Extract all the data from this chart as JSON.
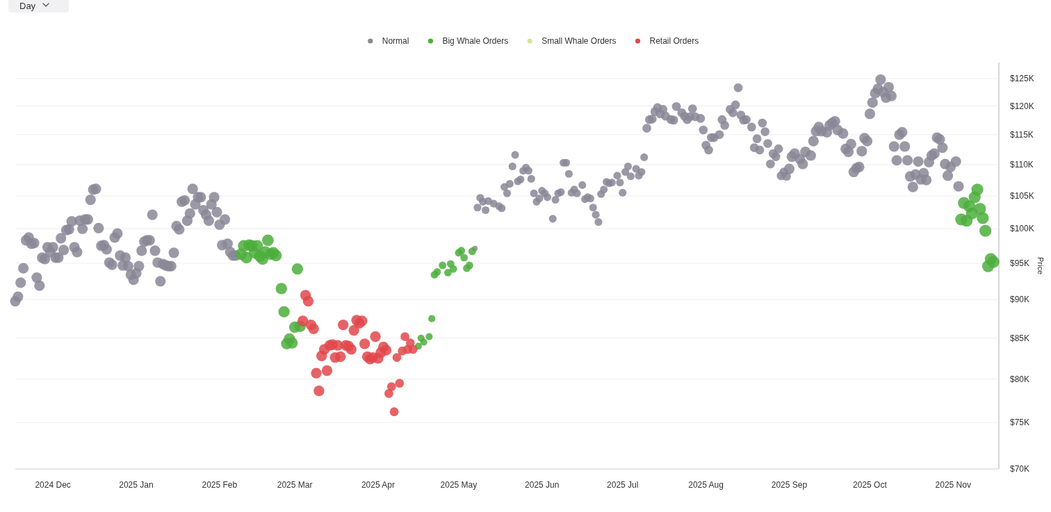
{
  "chart_data": {
    "type": "bubble",
    "ylabel": "Price",
    "annotations": [
      "Day"
    ],
    "legend": "top",
    "grid": "y",
    "log": "y",
    "xlim": [
      "2024-11-17",
      "2025-11-18"
    ],
    "xticks": [
      {
        "value": "2024-12-01",
        "label": "2024 Dec"
      },
      {
        "value": "2025-01-01",
        "label": "2025 Jan"
      },
      {
        "value": "2025-02-01",
        "label": "2025 Feb"
      },
      {
        "value": "2025-03-01",
        "label": "2025 Mar"
      },
      {
        "value": "2025-04-01",
        "label": "2025 Apr"
      },
      {
        "value": "2025-05-01",
        "label": "2025 May"
      },
      {
        "value": "2025-06-01",
        "label": "2025 Jun"
      },
      {
        "value": "2025-07-01",
        "label": "2025 Jul"
      },
      {
        "value": "2025-08-01",
        "label": "2025 Aug"
      },
      {
        "value": "2025-09-01",
        "label": "2025 Sep"
      },
      {
        "value": "2025-10-01",
        "label": "2025 Oct"
      },
      {
        "value": "2025-11-01",
        "label": "2025 Nov"
      }
    ],
    "ylim": [
      70000,
      128000
    ],
    "yticks": [
      {
        "value": 70000,
        "label": "$70K"
      },
      {
        "value": 75000,
        "label": "$75K"
      },
      {
        "value": 80000,
        "label": "$80K"
      },
      {
        "value": 85000,
        "label": "$85K"
      },
      {
        "value": 90000,
        "label": "$90K"
      },
      {
        "value": 95000,
        "label": "$95K"
      },
      {
        "value": 100000,
        "label": "$100K"
      },
      {
        "value": 105000,
        "label": "$105K"
      },
      {
        "value": 110000,
        "label": "$110K"
      },
      {
        "value": 115000,
        "label": "$115K"
      },
      {
        "value": 120000,
        "label": "$120K"
      },
      {
        "value": 125000,
        "label": "$125K"
      }
    ],
    "series": [
      {
        "name": "Normal",
        "color": "#8a8797",
        "x": [
          "2024-11-17",
          "2024-11-18",
          "2024-11-19",
          "2024-11-20",
          "2024-11-21",
          "2024-11-22",
          "2024-11-23",
          "2024-11-24",
          "2024-11-25",
          "2024-11-26",
          "2024-11-27",
          "2024-11-28",
          "2024-11-29",
          "2024-11-30",
          "2024-12-01",
          "2024-12-02",
          "2024-12-03",
          "2024-12-04",
          "2024-12-05",
          "2024-12-06",
          "2024-12-07",
          "2024-12-08",
          "2024-12-09",
          "2024-12-10",
          "2024-12-11",
          "2024-12-12",
          "2024-12-13",
          "2024-12-14",
          "2024-12-15",
          "2024-12-16",
          "2024-12-17",
          "2024-12-18",
          "2024-12-19",
          "2024-12-20",
          "2024-12-21",
          "2024-12-22",
          "2024-12-23",
          "2024-12-24",
          "2024-12-25",
          "2024-12-26",
          "2024-12-27",
          "2024-12-28",
          "2024-12-29",
          "2024-12-30",
          "2024-12-31",
          "2025-01-01",
          "2025-01-02",
          "2025-01-03",
          "2025-01-04",
          "2025-01-05",
          "2025-01-06",
          "2025-01-07",
          "2025-01-08",
          "2025-01-09",
          "2025-01-10",
          "2025-01-11",
          "2025-01-12",
          "2025-01-13",
          "2025-01-14",
          "2025-01-15",
          "2025-01-16",
          "2025-01-17",
          "2025-01-18",
          "2025-01-19",
          "2025-01-20",
          "2025-01-21",
          "2025-01-22",
          "2025-01-23",
          "2025-01-24",
          "2025-01-25",
          "2025-01-26",
          "2025-01-27",
          "2025-01-28",
          "2025-01-29",
          "2025-01-30",
          "2025-01-31",
          "2025-02-01",
          "2025-02-02",
          "2025-02-03",
          "2025-02-04",
          "2025-02-05",
          "2025-02-06",
          "2025-02-07",
          "2025-05-07",
          "2025-05-08",
          "2025-05-09",
          "2025-05-10",
          "2025-05-11",
          "2025-05-12",
          "2025-05-14",
          "2025-05-16",
          "2025-05-17",
          "2025-05-18",
          "2025-05-19",
          "2025-05-20",
          "2025-05-21",
          "2025-05-22",
          "2025-05-23",
          "2025-05-24",
          "2025-05-25",
          "2025-05-26",
          "2025-05-27",
          "2025-05-28",
          "2025-05-29",
          "2025-05-30",
          "2025-05-31",
          "2025-06-01",
          "2025-06-02",
          "2025-06-03",
          "2025-06-05",
          "2025-06-06",
          "2025-06-07",
          "2025-06-08",
          "2025-06-09",
          "2025-06-10",
          "2025-06-11",
          "2025-06-12",
          "2025-06-13",
          "2025-06-14",
          "2025-06-16",
          "2025-06-17",
          "2025-06-18",
          "2025-06-19",
          "2025-06-20",
          "2025-06-21",
          "2025-06-22",
          "2025-06-23",
          "2025-06-24",
          "2025-06-25",
          "2025-06-26",
          "2025-06-27",
          "2025-06-29",
          "2025-06-30",
          "2025-07-01",
          "2025-07-02",
          "2025-07-03",
          "2025-07-04",
          "2025-07-06",
          "2025-07-07",
          "2025-07-08",
          "2025-07-09",
          "2025-07-10",
          "2025-07-11",
          "2025-07-12",
          "2025-07-13",
          "2025-07-14",
          "2025-07-15",
          "2025-07-16",
          "2025-07-17",
          "2025-07-19",
          "2025-07-20",
          "2025-07-21",
          "2025-07-23",
          "2025-07-24",
          "2025-07-25",
          "2025-07-26",
          "2025-07-27",
          "2025-07-28",
          "2025-07-30",
          "2025-07-31",
          "2025-08-01",
          "2025-08-02",
          "2025-08-03",
          "2025-08-04",
          "2025-08-06",
          "2025-08-07",
          "2025-08-08",
          "2025-08-10",
          "2025-08-11",
          "2025-08-12",
          "2025-08-13",
          "2025-08-14",
          "2025-08-15",
          "2025-08-16",
          "2025-08-18",
          "2025-08-19",
          "2025-08-20",
          "2025-08-21",
          "2025-08-22",
          "2025-08-23",
          "2025-08-24",
          "2025-08-25",
          "2025-08-26",
          "2025-08-27",
          "2025-08-28",
          "2025-08-29",
          "2025-08-30",
          "2025-08-31",
          "2025-09-01",
          "2025-09-02",
          "2025-09-03",
          "2025-09-05",
          "2025-09-06",
          "2025-09-07",
          "2025-09-09",
          "2025-09-10",
          "2025-09-11",
          "2025-09-12",
          "2025-09-13",
          "2025-09-15",
          "2025-09-16",
          "2025-09-17",
          "2025-09-18",
          "2025-09-19",
          "2025-09-21",
          "2025-09-22",
          "2025-09-23",
          "2025-09-24",
          "2025-09-25",
          "2025-09-26",
          "2025-09-27",
          "2025-09-28",
          "2025-09-29",
          "2025-09-30",
          "2025-10-01",
          "2025-10-02",
          "2025-10-03",
          "2025-10-04",
          "2025-10-05",
          "2025-10-06",
          "2025-10-07",
          "2025-10-08",
          "2025-10-09",
          "2025-10-10",
          "2025-10-11",
          "2025-10-12",
          "2025-10-13",
          "2025-10-14",
          "2025-10-15",
          "2025-10-16",
          "2025-10-17",
          "2025-10-18",
          "2025-10-19",
          "2025-10-20",
          "2025-10-21",
          "2025-10-22",
          "2025-10-23",
          "2025-10-24",
          "2025-10-25",
          "2025-10-26",
          "2025-10-27",
          "2025-10-28",
          "2025-10-29",
          "2025-10-30",
          "2025-10-31",
          "2025-11-02",
          "2025-11-03"
        ],
        "values": [
          89800,
          90400,
          92300,
          94300,
          98300,
          98700,
          97800,
          97900,
          93000,
          91900,
          95800,
          95600,
          97300,
          96600,
          97300,
          95800,
          95800,
          98600,
          96900,
          99800,
          99900,
          101100,
          97300,
          96600,
          101200,
          100000,
          101400,
          101400,
          104400,
          106000,
          106100,
          100100,
          97500,
          97600,
          97000,
          95100,
          94800,
          98700,
          99300,
          96100,
          94700,
          95800,
          94600,
          93400,
          92700,
          93600,
          94600,
          96800,
          98100,
          98300,
          98300,
          102100,
          96800,
          95100,
          92500,
          94900,
          94700,
          94600,
          94600,
          96500,
          100400,
          99900,
          104100,
          104300,
          101200,
          102300,
          106100,
          103700,
          104800,
          104800,
          102800,
          102100,
          101200,
          103700,
          104800,
          102500,
          100600,
          97600,
          101400,
          97800,
          96600,
          96100,
          96100,
          97100,
          103200,
          104700,
          104100,
          102800,
          104200,
          103800,
          103400,
          103100,
          106400,
          105400,
          106900,
          109700,
          111600,
          107300,
          107600,
          109000,
          109500,
          109000,
          107700,
          105400,
          104100,
          104600,
          105800,
          105400,
          104800,
          101500,
          104400,
          105400,
          105600,
          110300,
          110300,
          108500,
          105500,
          106000,
          105400,
          106700,
          104500,
          104800,
          104600,
          103200,
          102100,
          101000,
          105300,
          106000,
          107200,
          107000,
          107100,
          108200,
          107100,
          105500,
          108800,
          109700,
          108100,
          109300,
          108200,
          108800,
          111200,
          116100,
          117600,
          117700,
          119000,
          119700,
          118600,
          119400,
          118200,
          117600,
          117500,
          119900,
          118800,
          118200,
          117600,
          118100,
          119500,
          118100,
          117800,
          115800,
          113200,
          112400,
          114500,
          114500,
          115000,
          117600,
          116600,
          119400,
          118800,
          120200,
          123300,
          118400,
          117500,
          117600,
          116300,
          112800,
          114300,
          112400,
          117000,
          115500,
          113500,
          110100,
          111800,
          111300,
          112600,
          108200,
          108800,
          108100,
          109300,
          111300,
          111800,
          110900,
          110100,
          112100,
          111500,
          113900,
          115600,
          116300,
          115600,
          115400,
          116600,
          117000,
          117300,
          115800,
          115200,
          112600,
          112100,
          113400,
          108800,
          109400,
          109600,
          112200,
          114400,
          113900,
          118600,
          120600,
          122300,
          123100,
          124800,
          122500,
          121500,
          123400,
          121800,
          113000,
          110700,
          115000,
          115400,
          113000,
          110700,
          108100,
          106400,
          108400,
          110500,
          107600,
          108600,
          107500,
          110400,
          111500,
          111800,
          114500,
          114200,
          112800,
          110100,
          108200,
          109600,
          110500,
          106500
        ],
        "sizes": [
          0.78,
          0.78,
          0.78,
          0.78,
          0.78,
          0.78,
          0.78,
          0.78,
          0.78,
          0.78,
          0.78,
          0.78,
          0.78,
          0.78,
          0.78,
          0.78,
          0.78,
          0.78,
          0.78,
          0.78,
          0.78,
          0.78,
          0.78,
          0.78,
          0.78,
          0.78,
          0.78,
          0.78,
          0.78,
          0.78,
          0.78,
          0.78,
          0.78,
          0.78,
          0.78,
          0.78,
          0.78,
          0.78,
          0.78,
          0.78,
          0.78,
          0.78,
          0.78,
          0.78,
          0.78,
          0.78,
          0.78,
          0.78,
          0.78,
          0.78,
          0.78,
          0.78,
          0.78,
          0.78,
          0.78,
          0.78,
          0.78,
          0.78,
          0.78,
          0.78,
          0.78,
          0.78,
          0.78,
          0.78,
          0.78,
          0.78,
          0.78,
          0.78,
          0.78,
          0.78,
          0.78,
          0.78,
          0.78,
          0.78,
          0.78,
          0.78,
          0.78,
          0.78,
          0.78,
          0.78,
          0.78,
          0.78,
          0.78,
          0.22,
          0.42,
          0.42,
          0.42,
          0.42,
          0.42,
          0.42,
          0.42,
          0.42,
          0.42,
          0.42,
          0.42,
          0.42,
          0.42,
          0.42,
          0.42,
          0.42,
          0.42,
          0.42,
          0.42,
          0.42,
          0.42,
          0.42,
          0.42,
          0.42,
          0.42,
          0.42,
          0.42,
          0.42,
          0.42,
          0.42,
          0.42,
          0.42,
          0.42,
          0.42,
          0.42,
          0.42,
          0.42,
          0.42,
          0.42,
          0.42,
          0.42,
          0.42,
          0.42,
          0.42,
          0.42,
          0.42,
          0.42,
          0.42,
          0.42,
          0.42,
          0.42,
          0.42,
          0.42,
          0.42,
          0.42,
          0.42,
          0.42,
          0.55,
          0.55,
          0.55,
          0.55,
          0.55,
          0.55,
          0.55,
          0.55,
          0.55,
          0.55,
          0.55,
          0.55,
          0.55,
          0.55,
          0.55,
          0.55,
          0.55,
          0.55,
          0.55,
          0.55,
          0.55,
          0.55,
          0.55,
          0.55,
          0.55,
          0.55,
          0.55,
          0.55,
          0.55,
          0.55,
          0.55,
          0.55,
          0.55,
          0.55,
          0.55,
          0.55,
          0.55,
          0.55,
          0.55,
          0.55,
          0.55,
          0.55,
          0.55,
          0.55,
          0.55,
          0.55,
          0.55,
          0.78,
          0.78,
          0.78,
          0.78,
          0.78,
          0.78,
          0.78,
          0.78,
          0.78,
          0.78,
          0.78,
          0.78,
          0.78,
          0.78,
          0.78,
          0.78,
          0.78,
          0.78,
          0.78,
          0.78,
          0.78,
          0.78,
          0.78,
          0.78,
          0.78,
          0.78,
          0.78,
          0.78,
          0.78,
          0.78,
          0.78,
          0.78,
          0.78,
          0.78,
          0.78,
          0.78,
          0.78,
          0.78,
          0.78,
          0.78,
          0.78,
          0.78,
          0.78,
          0.78,
          0.78,
          0.78,
          0.78,
          0.78,
          0.78,
          0.78,
          0.78,
          0.78,
          0.78,
          0.78,
          0.78,
          0.78,
          0.78,
          0.78,
          0.78
        ]
      },
      {
        "name": "Big Whale Orders",
        "color": "#4cae3c",
        "x": [
          "2025-02-09",
          "2025-02-10",
          "2025-02-11",
          "2025-02-12",
          "2025-02-13",
          "2025-02-14",
          "2025-02-15",
          "2025-02-16",
          "2025-02-17",
          "2025-02-18",
          "2025-02-19",
          "2025-02-20",
          "2025-02-21",
          "2025-02-22",
          "2025-02-24",
          "2025-02-25",
          "2025-02-26",
          "2025-02-27",
          "2025-02-28",
          "2025-03-01",
          "2025-03-02",
          "2025-03-03",
          "2025-04-16",
          "2025-04-17",
          "2025-04-18",
          "2025-04-20",
          "2025-04-21",
          "2025-04-22",
          "2025-04-23",
          "2025-04-25",
          "2025-04-27",
          "2025-04-28",
          "2025-04-29",
          "2025-05-01",
          "2025-05-02",
          "2025-05-03",
          "2025-05-04",
          "2025-05-05",
          "2025-05-06",
          "2025-11-04",
          "2025-11-05",
          "2025-11-06",
          "2025-11-07",
          "2025-11-08",
          "2025-11-09",
          "2025-11-10",
          "2025-11-11",
          "2025-11-12",
          "2025-11-13",
          "2025-11-14",
          "2025-11-15",
          "2025-11-16"
        ],
        "values": [
          96300,
          97500,
          95800,
          97600,
          97500,
          96500,
          97500,
          96000,
          95600,
          96600,
          98300,
          96300,
          96500,
          96100,
          91500,
          88400,
          84300,
          84900,
          84400,
          86400,
          94200,
          86500,
          84000,
          85000,
          84500,
          85200,
          87500,
          93400,
          93800,
          94700,
          93700,
          94900,
          94200,
          96500,
          96800,
          95800,
          94300,
          94700,
          96700,
          101400,
          103900,
          101200,
          103400,
          102300,
          104800,
          106000,
          103000,
          101600,
          99700,
          94600,
          95600,
          95200
        ],
        "sizes": [
          0.95,
          0.95,
          0.95,
          0.95,
          0.95,
          0.95,
          0.95,
          0.95,
          0.95,
          0.95,
          0.95,
          0.95,
          0.95,
          0.95,
          0.9,
          0.9,
          0.9,
          0.9,
          0.9,
          0.9,
          0.9,
          0.9,
          0.35,
          0.35,
          0.35,
          0.35,
          0.35,
          0.4,
          0.4,
          0.4,
          0.4,
          0.4,
          0.4,
          0.4,
          0.4,
          0.4,
          0.4,
          0.4,
          0.4,
          1,
          1,
          1,
          1,
          1,
          1,
          1,
          1,
          1,
          1,
          1,
          1,
          1
        ]
      },
      {
        "name": "Small Whale Orders",
        "color": "#d3e69e"
      },
      {
        "name": "Retail Orders",
        "color": "#e0484b",
        "x": [
          "2025-03-04",
          "2025-03-05",
          "2025-03-06",
          "2025-03-07",
          "2025-03-08",
          "2025-03-09",
          "2025-03-10",
          "2025-03-11",
          "2025-03-12",
          "2025-03-13",
          "2025-03-14",
          "2025-03-15",
          "2025-03-16",
          "2025-03-17",
          "2025-03-18",
          "2025-03-19",
          "2025-03-20",
          "2025-03-21",
          "2025-03-22",
          "2025-03-23",
          "2025-03-24",
          "2025-03-25",
          "2025-03-26",
          "2025-03-27",
          "2025-03-28",
          "2025-03-29",
          "2025-03-30",
          "2025-03-31",
          "2025-04-01",
          "2025-04-02",
          "2025-04-03",
          "2025-04-04",
          "2025-04-05",
          "2025-04-06",
          "2025-04-07",
          "2025-04-08",
          "2025-04-09",
          "2025-04-10",
          "2025-04-11",
          "2025-04-12",
          "2025-04-13",
          "2025-04-14"
        ],
        "values": [
          87200,
          90600,
          89800,
          86700,
          86200,
          80700,
          78600,
          82800,
          83600,
          81000,
          84100,
          84200,
          82600,
          84100,
          82700,
          86700,
          84100,
          84000,
          83600,
          86000,
          87300,
          86900,
          87200,
          84300,
          82700,
          82400,
          82600,
          85200,
          82500,
          83200,
          83900,
          83500,
          78300,
          79100,
          76200,
          82600,
          79500,
          83400,
          85200,
          83600,
          84400,
          83600
        ],
        "sizes": [
          0.8,
          0.8,
          0.8,
          0.8,
          0.8,
          0.8,
          0.8,
          0.8,
          0.8,
          0.8,
          0.8,
          0.8,
          0.8,
          0.8,
          0.8,
          0.8,
          0.8,
          0.8,
          0.8,
          0.8,
          0.8,
          0.8,
          0.8,
          0.8,
          0.8,
          0.8,
          0.8,
          0.8,
          0.8,
          0.8,
          0.8,
          0.8,
          0.55,
          0.55,
          0.55,
          0.55,
          0.55,
          0.55,
          0.55,
          0.55,
          0.55,
          0.55
        ]
      }
    ]
  }
}
